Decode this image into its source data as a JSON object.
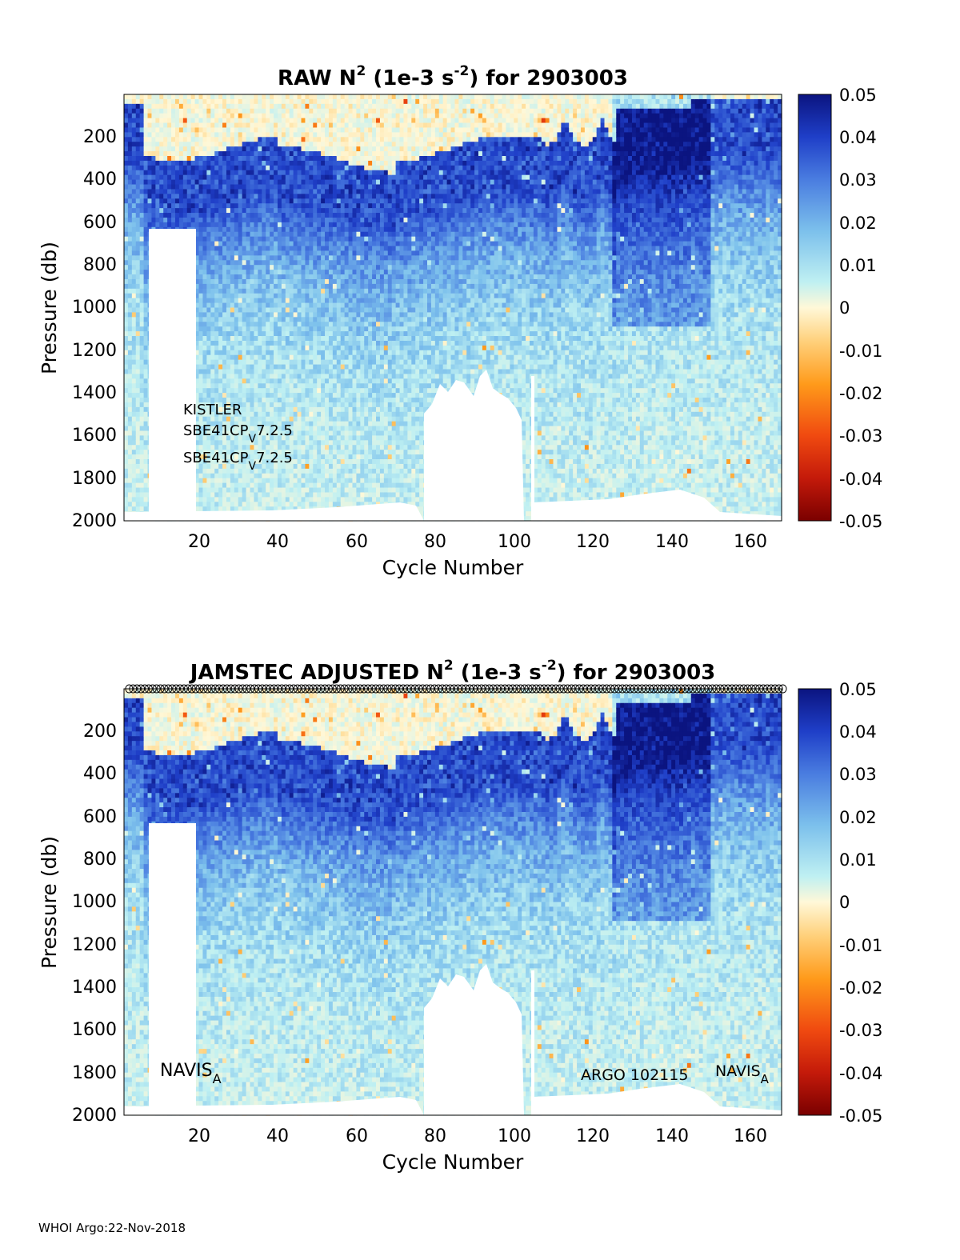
{
  "footer": "WHOI Argo:22-Nov-2018",
  "chart_data": [
    {
      "type": "heatmap",
      "title_main": "RAW N",
      "title_sup1": "2",
      "title_mid": " (1e-3 s",
      "title_sup2": "-2",
      "title_end": ") for 2903003",
      "xlabel": "Cycle Number",
      "ylabel": "Pressure (db)",
      "xlim": [
        1,
        168
      ],
      "ylim": [
        2000,
        0
      ],
      "x_ticks": [
        20,
        40,
        60,
        80,
        100,
        120,
        140,
        160
      ],
      "y_ticks": [
        200,
        400,
        600,
        800,
        1000,
        1200,
        1400,
        1600,
        1800,
        2000
      ],
      "colorbar": {
        "range": [
          -0.05,
          0.05
        ],
        "ticks": [
          "0.05",
          "0.04",
          "0.03",
          "0.02",
          "0.01",
          "0",
          "-0.01",
          "-0.02",
          "-0.03",
          "-0.04",
          "-0.05"
        ],
        "colors_high_to_low": [
          "#0b1480",
          "#1f3fc8",
          "#4a7de0",
          "#7cc0ec",
          "#bff0f2",
          "#fff8d8",
          "#ffd07a",
          "#ff9a1a",
          "#f04a10",
          "#c41a0a",
          "#7a0000"
        ]
      },
      "annotations": [
        {
          "text": "KISTLER",
          "sub": ""
        },
        {
          "text": "SBE41CP",
          "sub": "V",
          "after": "7.2.5"
        },
        {
          "text": "SBE41CP",
          "sub": "V",
          "after": "7.2.5"
        }
      ],
      "data_gaps": [
        {
          "x": [
            7,
            19
          ],
          "p_from": 630
        },
        {
          "x": [
            77,
            86
          ],
          "p_from": 1350
        },
        {
          "x": [
            86,
            100
          ],
          "p_from": 1300
        },
        {
          "x": [
            101,
            105
          ],
          "p_from": 1330
        }
      ]
    },
    {
      "type": "heatmap",
      "title_main": "JAMSTEC  ADJUSTED N",
      "title_sup1": "2",
      "title_mid": " (1e-3 s",
      "title_sup2": "-2",
      "title_end": ") for 2903003",
      "xlabel": "Cycle Number",
      "ylabel": "Pressure (db)",
      "xlim": [
        1,
        168
      ],
      "ylim": [
        2000,
        0
      ],
      "x_ticks": [
        20,
        40,
        60,
        80,
        100,
        120,
        140,
        160
      ],
      "y_ticks": [
        200,
        400,
        600,
        800,
        1000,
        1200,
        1400,
        1600,
        1800,
        2000
      ],
      "colorbar": {
        "range": [
          -0.05,
          0.05
        ],
        "ticks": [
          "0.05",
          "0.04",
          "0.03",
          "0.02",
          "0.01",
          "0",
          "-0.01",
          "-0.02",
          "-0.03",
          "-0.04",
          "-0.05"
        ],
        "colors_high_to_low": [
          "#0b1480",
          "#1f3fc8",
          "#4a7de0",
          "#7cc0ec",
          "#bff0f2",
          "#fff8d8",
          "#ffd07a",
          "#ff9a1a",
          "#f04a10",
          "#c41a0a",
          "#7a0000"
        ]
      },
      "annotations": [
        {
          "text": "NAVIS",
          "sub": "A"
        },
        {
          "text": "ARGO 102115",
          "sub": ""
        },
        {
          "text": "NAVIS",
          "sub": "A"
        }
      ],
      "surface_markers": "circles along 0 db for each cycle",
      "data_gaps": [
        {
          "x": [
            7,
            19
          ],
          "p_from": 630
        },
        {
          "x": [
            77,
            86
          ],
          "p_from": 1350
        },
        {
          "x": [
            86,
            100
          ],
          "p_from": 1300
        },
        {
          "x": [
            101,
            105
          ],
          "p_from": 1330
        }
      ]
    }
  ]
}
